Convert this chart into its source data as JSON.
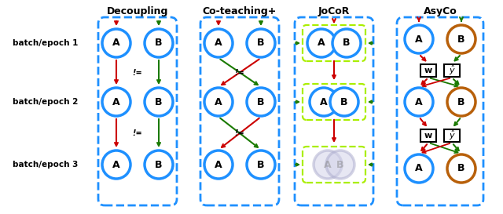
{
  "title_decoupling": "Decoupling",
  "title_coteaching": "Co-teaching+",
  "title_jocor": "JoCoR",
  "title_asyco": "AsyCo",
  "row_labels": [
    "batch/epoch 1",
    "batch/epoch 2",
    "batch/epoch 3"
  ],
  "blue": "#1E90FF",
  "brown": "#B8600A",
  "red": "#CC0000",
  "green": "#1A7A00",
  "dblue": "#1E90FF",
  "dgreen": "#AAEE00",
  "gray_circle": "#AAAACC",
  "gray_text": "#888888"
}
